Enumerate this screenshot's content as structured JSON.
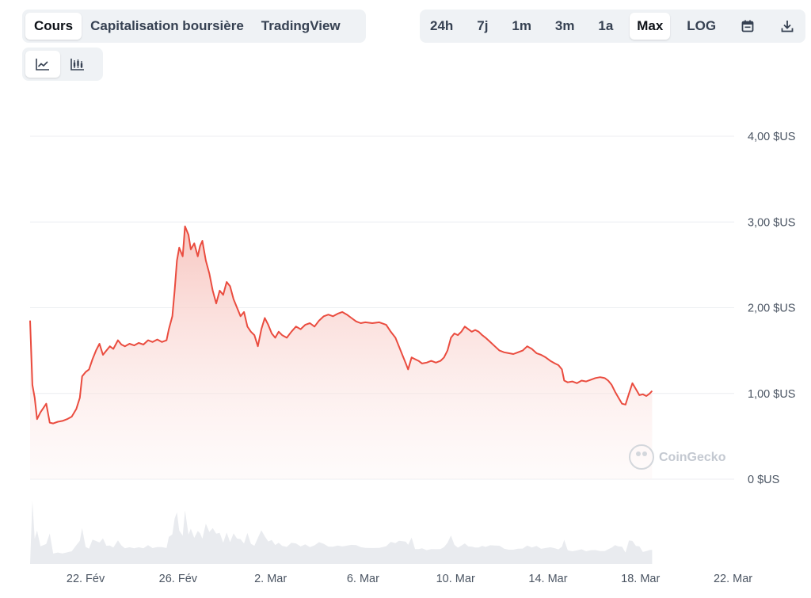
{
  "tabs": [
    {
      "label": "Cours",
      "active": true
    },
    {
      "label": "Capitalisation boursière",
      "active": false
    },
    {
      "label": "TradingView",
      "active": false
    }
  ],
  "ranges": [
    {
      "label": "24h",
      "active": false
    },
    {
      "label": "7j",
      "active": false
    },
    {
      "label": "1m",
      "active": false
    },
    {
      "label": "3m",
      "active": false
    },
    {
      "label": "1a",
      "active": false
    },
    {
      "label": "Max",
      "active": true
    },
    {
      "label": "LOG",
      "active": false
    }
  ],
  "toolbar_icons": [
    "calendar-icon",
    "download-icon"
  ],
  "chart_types": [
    {
      "icon": "line-chart-icon",
      "active": true
    },
    {
      "icon": "candlestick-chart-icon",
      "active": false
    }
  ],
  "watermark": "CoinGecko",
  "colors": {
    "line": "#ea4c3f",
    "fill_top": "#f9cfcb",
    "volume": "#e9ebef",
    "grid": "#eceef1"
  },
  "chart_data": {
    "type": "area",
    "y_unit": "$US",
    "ylim": [
      0,
      4.0
    ],
    "yticks": [
      {
        "value": 4.0,
        "label": "4,00 $US"
      },
      {
        "value": 3.0,
        "label": "3,00 $US"
      },
      {
        "value": 2.0,
        "label": "2,00 $US"
      },
      {
        "value": 1.0,
        "label": "1,00 $US"
      },
      {
        "value": 0,
        "label": "0 $US"
      }
    ],
    "xlim": [
      19.6,
      50.05
    ],
    "xticks": [
      {
        "day": 22,
        "label": "22. Fév"
      },
      {
        "day": 26,
        "label": "26. Fév"
      },
      {
        "day": 30,
        "label": "2. Mar"
      },
      {
        "day": 34,
        "label": "6. Mar"
      },
      {
        "day": 38,
        "label": "10. Mar"
      },
      {
        "day": 42,
        "label": "14. Mar"
      },
      {
        "day": 46,
        "label": "18. Mar"
      },
      {
        "day": 50,
        "label": "22. Mar"
      }
    ],
    "grid": true,
    "series": [
      {
        "kind": "price",
        "points": [
          [
            19.6,
            1.85
          ],
          [
            19.7,
            1.1
          ],
          [
            19.8,
            0.95
          ],
          [
            19.9,
            0.7
          ],
          [
            20.05,
            0.78
          ],
          [
            20.3,
            0.88
          ],
          [
            20.45,
            0.66
          ],
          [
            20.6,
            0.65
          ],
          [
            20.8,
            0.67
          ],
          [
            21.0,
            0.68
          ],
          [
            21.2,
            0.7
          ],
          [
            21.4,
            0.73
          ],
          [
            21.6,
            0.82
          ],
          [
            21.75,
            0.95
          ],
          [
            21.85,
            1.2
          ],
          [
            22.0,
            1.25
          ],
          [
            22.15,
            1.28
          ],
          [
            22.3,
            1.4
          ],
          [
            22.45,
            1.5
          ],
          [
            22.6,
            1.58
          ],
          [
            22.75,
            1.45
          ],
          [
            22.9,
            1.5
          ],
          [
            23.05,
            1.55
          ],
          [
            23.2,
            1.52
          ],
          [
            23.4,
            1.62
          ],
          [
            23.55,
            1.57
          ],
          [
            23.7,
            1.55
          ],
          [
            23.9,
            1.58
          ],
          [
            24.1,
            1.56
          ],
          [
            24.3,
            1.59
          ],
          [
            24.5,
            1.57
          ],
          [
            24.7,
            1.62
          ],
          [
            24.9,
            1.6
          ],
          [
            25.1,
            1.63
          ],
          [
            25.3,
            1.6
          ],
          [
            25.5,
            1.62
          ],
          [
            25.6,
            1.75
          ],
          [
            25.75,
            1.9
          ],
          [
            25.85,
            2.2
          ],
          [
            25.95,
            2.55
          ],
          [
            26.05,
            2.7
          ],
          [
            26.2,
            2.6
          ],
          [
            26.3,
            2.95
          ],
          [
            26.45,
            2.85
          ],
          [
            26.55,
            2.68
          ],
          [
            26.7,
            2.75
          ],
          [
            26.85,
            2.6
          ],
          [
            26.95,
            2.72
          ],
          [
            27.05,
            2.78
          ],
          [
            27.2,
            2.55
          ],
          [
            27.35,
            2.4
          ],
          [
            27.5,
            2.2
          ],
          [
            27.65,
            2.05
          ],
          [
            27.8,
            2.2
          ],
          [
            27.95,
            2.15
          ],
          [
            28.1,
            2.3
          ],
          [
            28.25,
            2.25
          ],
          [
            28.4,
            2.1
          ],
          [
            28.55,
            2.0
          ],
          [
            28.7,
            1.9
          ],
          [
            28.85,
            1.95
          ],
          [
            29.0,
            1.78
          ],
          [
            29.15,
            1.72
          ],
          [
            29.3,
            1.68
          ],
          [
            29.45,
            1.55
          ],
          [
            29.6,
            1.75
          ],
          [
            29.75,
            1.88
          ],
          [
            29.9,
            1.8
          ],
          [
            30.05,
            1.7
          ],
          [
            30.2,
            1.65
          ],
          [
            30.35,
            1.72
          ],
          [
            30.5,
            1.68
          ],
          [
            30.7,
            1.65
          ],
          [
            30.9,
            1.72
          ],
          [
            31.1,
            1.78
          ],
          [
            31.3,
            1.75
          ],
          [
            31.5,
            1.8
          ],
          [
            31.7,
            1.82
          ],
          [
            31.9,
            1.78
          ],
          [
            32.1,
            1.85
          ],
          [
            32.3,
            1.9
          ],
          [
            32.5,
            1.92
          ],
          [
            32.7,
            1.9
          ],
          [
            32.9,
            1.93
          ],
          [
            33.1,
            1.95
          ],
          [
            33.3,
            1.92
          ],
          [
            33.5,
            1.88
          ],
          [
            33.7,
            1.84
          ],
          [
            33.9,
            1.82
          ],
          [
            34.1,
            1.83
          ],
          [
            34.4,
            1.82
          ],
          [
            34.7,
            1.83
          ],
          [
            35.0,
            1.8
          ],
          [
            35.2,
            1.72
          ],
          [
            35.4,
            1.65
          ],
          [
            35.55,
            1.55
          ],
          [
            35.7,
            1.45
          ],
          [
            35.85,
            1.35
          ],
          [
            35.95,
            1.28
          ],
          [
            36.1,
            1.42
          ],
          [
            36.25,
            1.4
          ],
          [
            36.4,
            1.38
          ],
          [
            36.55,
            1.35
          ],
          [
            36.75,
            1.36
          ],
          [
            36.95,
            1.38
          ],
          [
            37.15,
            1.36
          ],
          [
            37.35,
            1.38
          ],
          [
            37.5,
            1.42
          ],
          [
            37.65,
            1.5
          ],
          [
            37.8,
            1.65
          ],
          [
            37.95,
            1.7
          ],
          [
            38.1,
            1.68
          ],
          [
            38.25,
            1.72
          ],
          [
            38.4,
            1.78
          ],
          [
            38.55,
            1.75
          ],
          [
            38.7,
            1.72
          ],
          [
            38.85,
            1.74
          ],
          [
            39.0,
            1.72
          ],
          [
            39.15,
            1.68
          ],
          [
            39.3,
            1.65
          ],
          [
            39.5,
            1.6
          ],
          [
            39.7,
            1.55
          ],
          [
            39.9,
            1.5
          ],
          [
            40.1,
            1.48
          ],
          [
            40.3,
            1.47
          ],
          [
            40.5,
            1.46
          ],
          [
            40.7,
            1.48
          ],
          [
            40.9,
            1.5
          ],
          [
            41.1,
            1.55
          ],
          [
            41.3,
            1.52
          ],
          [
            41.5,
            1.47
          ],
          [
            41.7,
            1.45
          ],
          [
            41.9,
            1.42
          ],
          [
            42.1,
            1.38
          ],
          [
            42.3,
            1.35
          ],
          [
            42.45,
            1.33
          ],
          [
            42.6,
            1.28
          ],
          [
            42.7,
            1.15
          ],
          [
            42.85,
            1.13
          ],
          [
            43.05,
            1.14
          ],
          [
            43.25,
            1.12
          ],
          [
            43.45,
            1.15
          ],
          [
            43.65,
            1.14
          ],
          [
            43.85,
            1.16
          ],
          [
            44.05,
            1.18
          ],
          [
            44.25,
            1.19
          ],
          [
            44.45,
            1.18
          ],
          [
            44.6,
            1.15
          ],
          [
            44.75,
            1.1
          ],
          [
            44.9,
            1.02
          ],
          [
            45.05,
            0.95
          ],
          [
            45.2,
            0.88
          ],
          [
            45.35,
            0.87
          ],
          [
            45.5,
            1.0
          ],
          [
            45.65,
            1.12
          ],
          [
            45.8,
            1.05
          ],
          [
            45.95,
            0.98
          ],
          [
            46.1,
            0.99
          ],
          [
            46.25,
            0.97
          ],
          [
            46.4,
            1.0
          ],
          [
            46.5,
            1.03
          ]
        ]
      }
    ]
  }
}
